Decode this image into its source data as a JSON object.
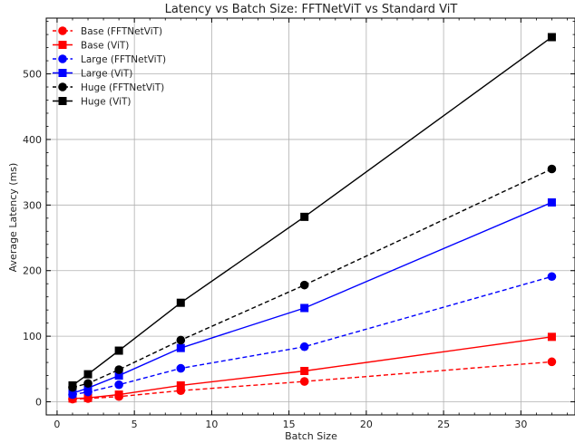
{
  "chart_data": {
    "type": "line",
    "title": "Latency vs Batch Size: FFTNetViT vs Standard ViT",
    "xlabel": "Batch Size",
    "ylabel": "Average Latency (ms)",
    "xlim": [
      -0.7,
      33.5
    ],
    "ylim": [
      -20,
      585
    ],
    "xticks": [
      0,
      5,
      10,
      15,
      20,
      25,
      30
    ],
    "yticks": [
      0,
      100,
      200,
      300,
      400,
      500
    ],
    "grid": true,
    "legend_position": "top-left",
    "series": [
      {
        "name": "Base (FFTNetViT)",
        "color": "#ff0000",
        "linestyle": "dashed",
        "marker": "circle",
        "x": [
          1,
          2,
          4,
          8,
          16,
          32
        ],
        "y": [
          4,
          5,
          8,
          17,
          31,
          61
        ]
      },
      {
        "name": "Base (ViT)",
        "color": "#ff0000",
        "linestyle": "solid",
        "marker": "square",
        "x": [
          1,
          2,
          4,
          8,
          16,
          32
        ],
        "y": [
          5,
          6,
          11,
          25,
          47,
          99
        ]
      },
      {
        "name": "Large (FFTNetViT)",
        "color": "#0000ff",
        "linestyle": "dashed",
        "marker": "circle",
        "x": [
          1,
          2,
          4,
          8,
          16,
          32
        ],
        "y": [
          11,
          15,
          26,
          51,
          84,
          191
        ]
      },
      {
        "name": "Large (ViT)",
        "color": "#0000ff",
        "linestyle": "solid",
        "marker": "square",
        "x": [
          1,
          2,
          4,
          8,
          16,
          32
        ],
        "y": [
          13,
          21,
          40,
          82,
          143,
          304
        ]
      },
      {
        "name": "Huge (FFTNetViT)",
        "color": "#000000",
        "linestyle": "dashed",
        "marker": "circle",
        "x": [
          1,
          2,
          4,
          8,
          16,
          32
        ],
        "y": [
          22,
          28,
          49,
          94,
          178,
          355
        ]
      },
      {
        "name": "Huge (ViT)",
        "color": "#000000",
        "linestyle": "solid",
        "marker": "square",
        "x": [
          1,
          2,
          4,
          8,
          16,
          32
        ],
        "y": [
          25,
          42,
          78,
          151,
          282,
          556
        ]
      }
    ]
  }
}
